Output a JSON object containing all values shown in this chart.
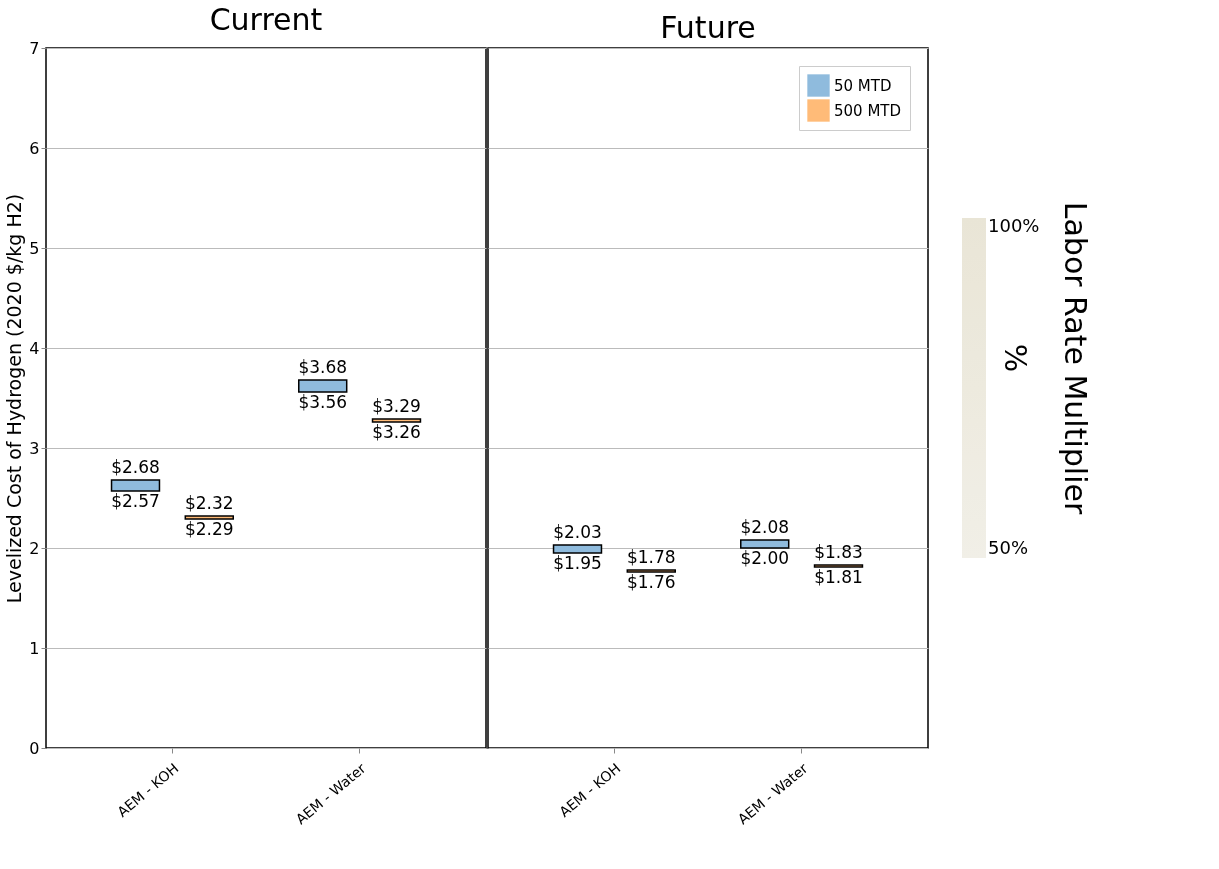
{
  "chart_data": [
    {
      "type": "bar",
      "title": "Current",
      "ylabel": "Levelized Cost of Hydrogen (2020 $/kg H2)",
      "categories": [
        "AEM - KOH",
        "AEM - Water"
      ],
      "ylim": [
        0,
        7
      ],
      "yticks": [
        0,
        1,
        2,
        3,
        4,
        5,
        6,
        7
      ],
      "grid": "y",
      "series": [
        {
          "color": "#8fbbdd",
          "base": [
            2.57,
            3.56
          ],
          "values": [
            0.11,
            0.12
          ],
          "value_labels": [
            "$2.68",
            "$3.68"
          ]
        },
        {
          "color": "#ffbb78",
          "base": [
            2.29,
            3.26
          ],
          "values": [
            0.03,
            0.03
          ],
          "value_labels": [
            "$2.32",
            "$3.29"
          ]
        }
      ],
      "annotations": [
        {
          "text": "$2.57",
          "x": "AEM - KOH",
          "y": 2.57
        },
        "$2.29",
        {
          "text": "$3.56",
          "x": "AEM - Water",
          "y": 3.56
        },
        "$3.26"
      ]
    },
    {
      "type": "bar",
      "title": "Future",
      "categories": [
        "AEM - KOH",
        "AEM - Water"
      ],
      "ylim": [
        0,
        7
      ],
      "yticks": [
        0,
        1,
        2,
        3,
        4,
        5,
        6,
        7
      ],
      "grid": "y",
      "tick_labels": "x",
      "legend": "top right",
      "series": [
        {
          "name": "50 MTD",
          "color": "#8fbbdd",
          "base": [
            1.95,
            2.0
          ],
          "values": [
            0.08,
            0.08
          ],
          "value_labels": [
            "$2.03",
            "$2.08"
          ]
        },
        {
          "name": "500 MTD",
          "color": "#ffbb78",
          "base": [
            1.76,
            1.81
          ],
          "values": [
            0.02,
            0.02
          ],
          "value_labels": [
            "$1.78",
            "$1.83"
          ]
        }
      ],
      "annotations": [
        {
          "text": "$1.95",
          "x": "AEM - KOH",
          "y": 1.95
        },
        "$1.76",
        {
          "text": "$2.00",
          "x": "AEM - Water",
          "y": 2.0
        },
        "$1.81"
      ],
      "clabel": "Labor Rate Multiplier %",
      "clim": [
        50,
        100
      ],
      "cticks": [
        {
          "value": 50,
          "label": "50%"
        },
        {
          "value": 100,
          "label": "100%"
        }
      ]
    }
  ]
}
